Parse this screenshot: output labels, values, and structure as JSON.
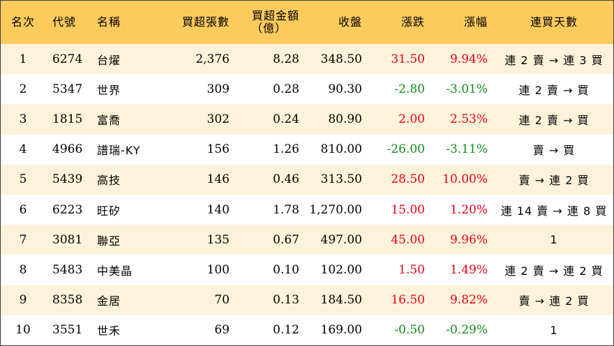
{
  "columns": [
    "名次",
    "代號",
    "名稱",
    "買超張數",
    "買超金額",
    "（億）",
    "收盤",
    "漲跌",
    "漲幅",
    "連買天數"
  ],
  "colors": {
    "header_bg": "#fbcb5e",
    "odd_row_bg": "#fef3da",
    "up": "#e8001b",
    "down": "#118a1a"
  },
  "rows": [
    {
      "rank": "1",
      "code": "6274",
      "name": "台燿",
      "shares": "2,376",
      "amount": "8.28",
      "close": "348.50",
      "change": "31.50",
      "pct": "9.94%",
      "streak": "連 2 賣 → 連 3 買",
      "dir": "up"
    },
    {
      "rank": "2",
      "code": "5347",
      "name": "世界",
      "shares": "309",
      "amount": "0.28",
      "close": "90.30",
      "change": "-2.80",
      "pct": "-3.01%",
      "streak": "連 2 賣 → 買",
      "dir": "down"
    },
    {
      "rank": "3",
      "code": "1815",
      "name": "富喬",
      "shares": "302",
      "amount": "0.24",
      "close": "80.90",
      "change": "2.00",
      "pct": "2.53%",
      "streak": "連 2 賣 → 買",
      "dir": "up"
    },
    {
      "rank": "4",
      "code": "4966",
      "name": "譜瑞-KY",
      "shares": "156",
      "amount": "1.26",
      "close": "810.00",
      "change": "-26.00",
      "pct": "-3.11%",
      "streak": "賣 → 買",
      "dir": "down"
    },
    {
      "rank": "5",
      "code": "5439",
      "name": "高技",
      "shares": "146",
      "amount": "0.46",
      "close": "313.50",
      "change": "28.50",
      "pct": "10.00%",
      "streak": "賣 → 連 2 買",
      "dir": "up"
    },
    {
      "rank": "6",
      "code": "6223",
      "name": "旺矽",
      "shares": "140",
      "amount": "1.78",
      "close": "1,270.00",
      "change": "15.00",
      "pct": "1.20%",
      "streak": "連 14 賣 → 連 8 買",
      "dir": "up"
    },
    {
      "rank": "7",
      "code": "3081",
      "name": "聯亞",
      "shares": "135",
      "amount": "0.67",
      "close": "497.00",
      "change": "45.00",
      "pct": "9.96%",
      "streak": "1",
      "dir": "up"
    },
    {
      "rank": "8",
      "code": "5483",
      "name": "中美晶",
      "shares": "100",
      "amount": "0.10",
      "close": "102.00",
      "change": "1.50",
      "pct": "1.49%",
      "streak": "連 2 賣 → 連 2 買",
      "dir": "up"
    },
    {
      "rank": "9",
      "code": "8358",
      "name": "金居",
      "shares": "70",
      "amount": "0.13",
      "close": "184.50",
      "change": "16.50",
      "pct": "9.82%",
      "streak": "賣 → 連 2 買",
      "dir": "up"
    },
    {
      "rank": "10",
      "code": "3551",
      "name": "世禾",
      "shares": "69",
      "amount": "0.12",
      "close": "169.00",
      "change": "-0.50",
      "pct": "-0.29%",
      "streak": "1",
      "dir": "down"
    }
  ]
}
